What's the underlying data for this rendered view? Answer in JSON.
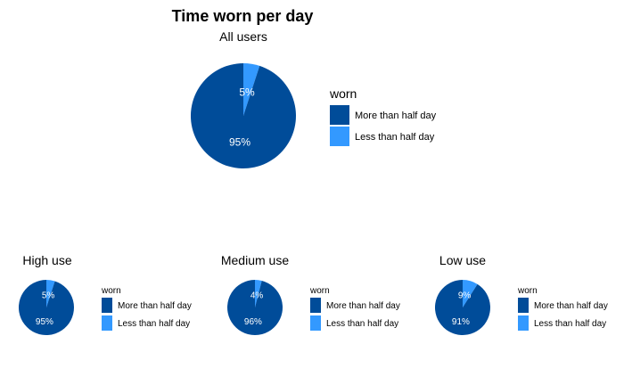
{
  "title": "Time worn per day",
  "colors": {
    "more": "#004C99",
    "less": "#3399FF"
  },
  "chart_data": [
    {
      "type": "pie",
      "subtitle": "All users",
      "legend_title": "worn",
      "categories": [
        "More than half day",
        "Less than half day"
      ],
      "values": [
        95,
        5
      ],
      "labels": [
        "95%",
        "5%"
      ]
    },
    {
      "type": "pie",
      "subtitle": "High use",
      "legend_title": "worn",
      "categories": [
        "More than half day",
        "Less than half day"
      ],
      "values": [
        95,
        5
      ],
      "labels": [
        "95%",
        "5%"
      ]
    },
    {
      "type": "pie",
      "subtitle": "Medium use",
      "legend_title": "worn",
      "categories": [
        "More than half day",
        "Less than half day"
      ],
      "values": [
        96,
        4
      ],
      "labels": [
        "96%",
        "4%"
      ]
    },
    {
      "type": "pie",
      "subtitle": "Low use",
      "legend_title": "worn",
      "categories": [
        "More than half day",
        "Less than half day"
      ],
      "values": [
        91,
        9
      ],
      "labels": [
        "91%",
        "9%"
      ]
    }
  ]
}
